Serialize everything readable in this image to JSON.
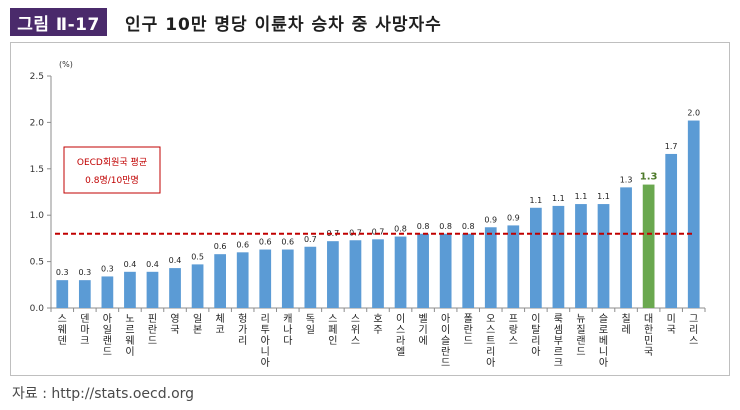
{
  "header": {
    "figure_label": "그림 Ⅱ-17",
    "title": "인구 10만 명당 이륜차 승차 중 사망자수"
  },
  "source_text": "자료 : http://stats.oecd.org",
  "chart_data": {
    "type": "bar",
    "unit_label": "(%)",
    "categories": [
      "스웨덴",
      "덴마크",
      "아일랜드",
      "노르웨이",
      "핀란드",
      "영국",
      "일본",
      "체코",
      "헝가리",
      "리투아니아",
      "캐나다",
      "독일",
      "스페인",
      "스위스",
      "호주",
      "이스라엘",
      "벨기에",
      "아이슬란드",
      "폴란드",
      "오스트리아",
      "프랑스",
      "이탈리아",
      "룩셈부르크",
      "뉴질랜드",
      "슬로베니아",
      "칠레",
      "대한민국",
      "미국",
      "그리스"
    ],
    "values": [
      0.3,
      0.3,
      0.34,
      0.39,
      0.39,
      0.43,
      0.47,
      0.58,
      0.6,
      0.63,
      0.63,
      0.66,
      0.72,
      0.73,
      0.74,
      0.77,
      0.8,
      0.8,
      0.8,
      0.87,
      0.89,
      1.08,
      1.1,
      1.12,
      1.12,
      1.3,
      1.33,
      1.66,
      2.02
    ],
    "data_labels": [
      "0.3",
      "0.3",
      "0.3",
      "0.4",
      "0.4",
      "0.4",
      "0.5",
      "0.6",
      "0.6",
      "0.6",
      "0.6",
      "0.7",
      "0.7",
      "0.7",
      "0.7",
      "0.8",
      "0.8",
      "0.8",
      "0.8",
      "0.9",
      "0.9",
      "1.1",
      "1.1",
      "1.1",
      "1.1",
      "1.3",
      "1.3",
      "1.7",
      "2.0"
    ],
    "highlight_category": "대한민국",
    "ylim": [
      0,
      2.5
    ],
    "yticks": [
      "0.0",
      "0.5",
      "1.0",
      "1.5",
      "2.0",
      "2.5"
    ],
    "average_line": 0.8,
    "average_box": [
      "OECD회원국 평균",
      "0.8명/10만명"
    ],
    "grid": false,
    "colors": {
      "bar": "#5b9bd5",
      "highlight": "#6aa84f",
      "average": "#c00000",
      "highlight_label": "#4e7a2a"
    }
  }
}
